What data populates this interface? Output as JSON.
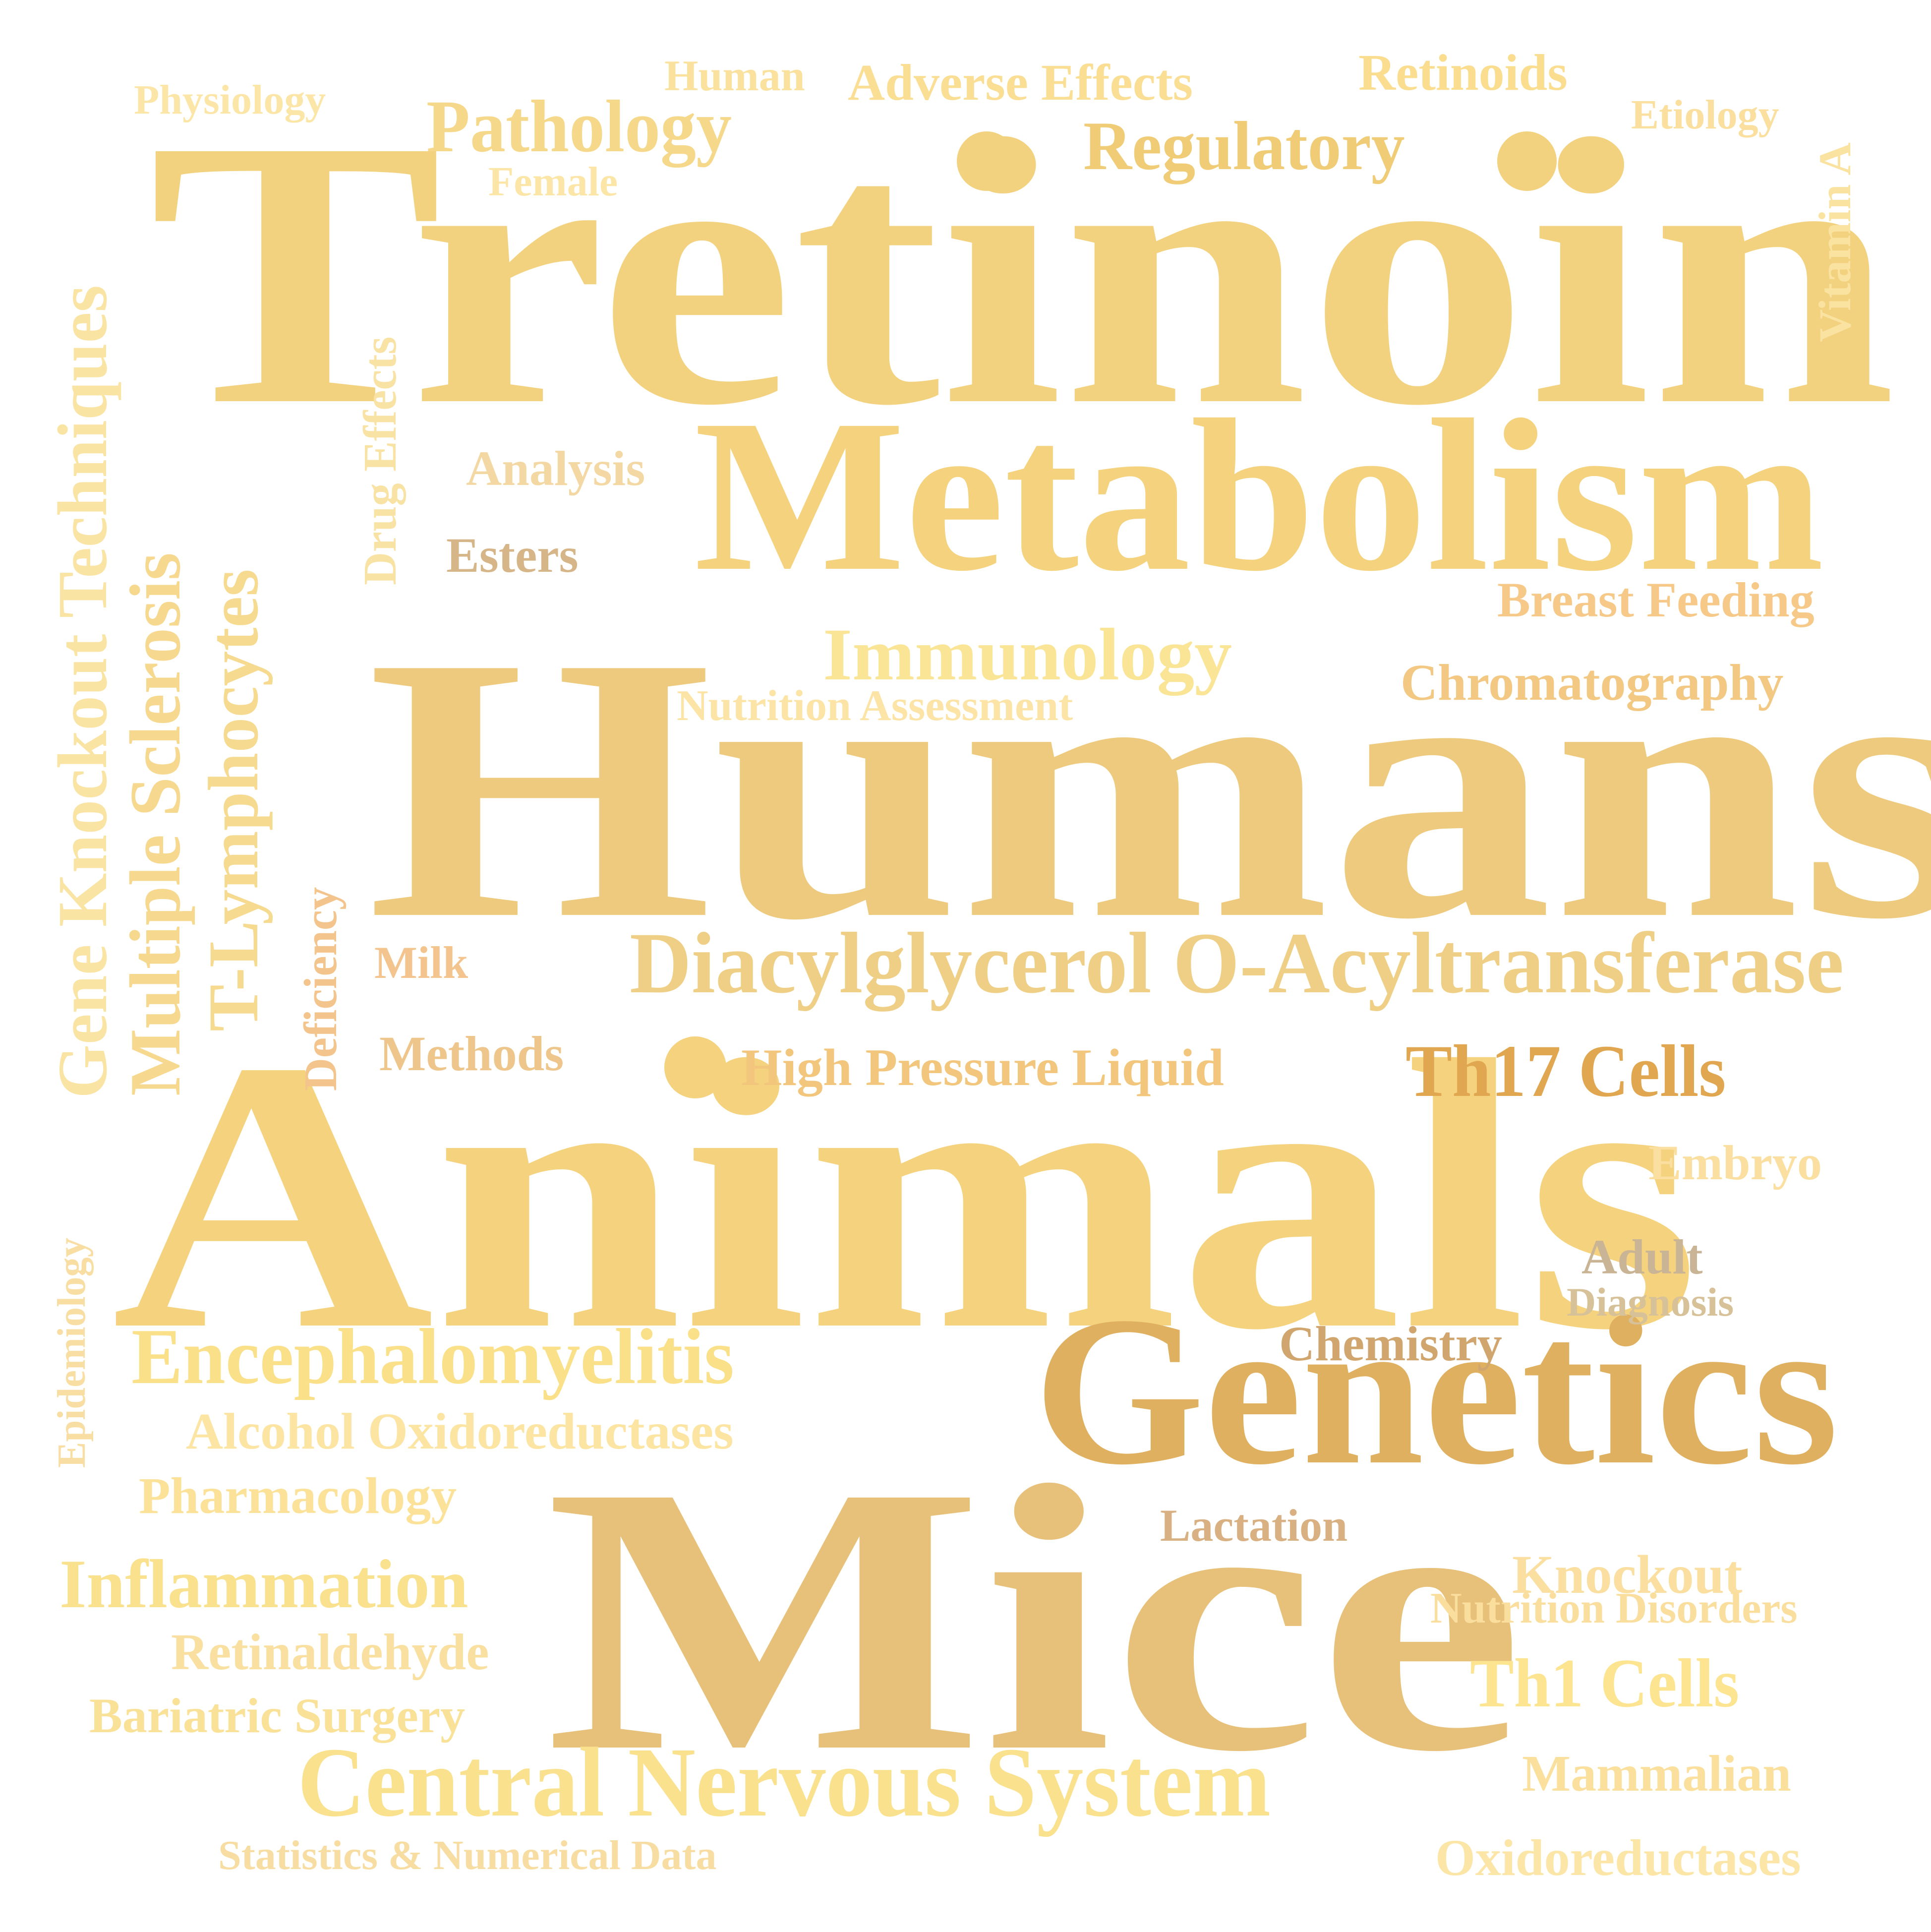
{
  "words": [
    {
      "text": "Tretinoin",
      "color": "#F3D27F"
    },
    {
      "text": "Humans",
      "color": "#EECA7E"
    },
    {
      "text": "Animals",
      "color": "#F5D27D"
    },
    {
      "text": "Mice",
      "color": "#E7C179"
    },
    {
      "text": "Metabolism",
      "color": "#F4D27E"
    },
    {
      "text": "Genetics",
      "color": "#DFB060"
    },
    {
      "text": "Diacylglycerol O-Acyltransferase",
      "color": "#EFCF85"
    },
    {
      "text": "Central Nervous System",
      "color": "#FAE18E"
    },
    {
      "text": "Encephalomyelitis",
      "color": "#FAE089"
    },
    {
      "text": "Regulatory",
      "color": "#F0CC76"
    },
    {
      "text": "Pathology",
      "color": "#F6D88A"
    },
    {
      "text": "Immunology",
      "color": "#FAE596"
    },
    {
      "text": "Th17 Cells",
      "color": "#E0A650"
    },
    {
      "text": "Th1 Cells",
      "color": "#FCE490"
    },
    {
      "text": "Inflammation",
      "color": "#FAE18D"
    },
    {
      "text": "Chromatography",
      "color": "#F2C883"
    },
    {
      "text": "High Pressure Liquid",
      "color": "#F2C77D"
    },
    {
      "text": "Alcohol Oxidoreductases",
      "color": "#FCE4A2"
    },
    {
      "text": "Retinaldehyde",
      "color": "#FAE0A0"
    },
    {
      "text": "Pharmacology",
      "color": "#FCE298"
    },
    {
      "text": "Bariatric Surgery",
      "color": "#FAE198"
    },
    {
      "text": "Adverse Effects",
      "color": "#FADE94"
    },
    {
      "text": "Retinoids",
      "color": "#FADD8F"
    },
    {
      "text": "Breast Feeding",
      "color": "#F6C989"
    },
    {
      "text": "Nutrition Assessment",
      "color": "#FCE4A6"
    },
    {
      "text": "Analysis",
      "color": "#F4D8A4"
    },
    {
      "text": "Esters",
      "color": "#D6B688"
    },
    {
      "text": "Methods",
      "color": "#EEC58A"
    },
    {
      "text": "Milk",
      "color": "#F3C48D"
    },
    {
      "text": "Embryo",
      "color": "#FADFA0"
    },
    {
      "text": "Adult",
      "color": "#CAB496"
    },
    {
      "text": "Diagnosis",
      "color": "#D7C198"
    },
    {
      "text": "Chemistry",
      "color": "#D0A56E"
    },
    {
      "text": "Lactation",
      "color": "#D9B082"
    },
    {
      "text": "Knockout",
      "color": "#FADFA0"
    },
    {
      "text": "Nutrition Disorders",
      "color": "#FADE9E"
    },
    {
      "text": "Mammalian",
      "color": "#FAE09C"
    },
    {
      "text": "Oxidoreductases",
      "color": "#FCE6A7"
    },
    {
      "text": "Statistics & Numerical Data",
      "color": "#F8DDA3"
    },
    {
      "text": "Human",
      "color": "#FAE29E"
    },
    {
      "text": "Physiology",
      "color": "#FCE6A7"
    },
    {
      "text": "Female",
      "color": "#FCE6A7"
    },
    {
      "text": "Etiology",
      "color": "#FADF9F"
    },
    {
      "text": "Vitamin A",
      "color": "#FAE2A0"
    },
    {
      "text": "Gene Knockout Techniques",
      "color": "#FAE4A4"
    },
    {
      "text": "Multiple Sclerosis",
      "color": "#F6D88E"
    },
    {
      "text": "T-Lymphocytes",
      "color": "#F6DA90"
    },
    {
      "text": "Drug Effects",
      "color": "#F8E2A4"
    },
    {
      "text": "Deficiency",
      "color": "#F3C58D"
    },
    {
      "text": "Epidemiology",
      "color": "#F8DEA2"
    }
  ],
  "dots": [
    {
      "color": "#F3D27F"
    },
    {
      "color": "#F3D27F"
    },
    {
      "color": "#F5D27D"
    }
  ]
}
